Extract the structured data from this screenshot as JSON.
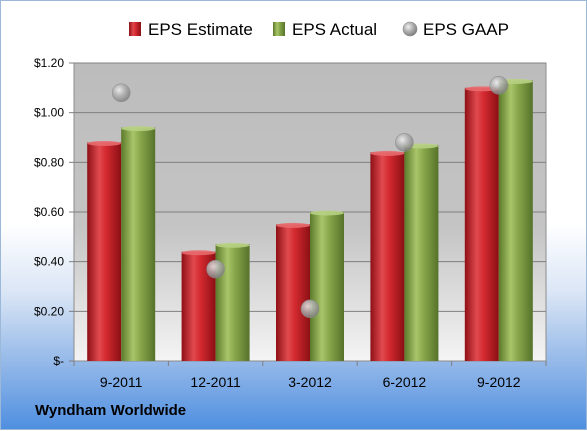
{
  "chart_data": {
    "type": "bar",
    "categories": [
      "9-2011",
      "12-2011",
      "3-2012",
      "6-2012",
      "9-2012"
    ],
    "series": [
      {
        "name": "EPS Estimate",
        "kind": "bar",
        "color": "#c8262c",
        "values": [
          0.88,
          0.44,
          0.55,
          0.84,
          1.1
        ]
      },
      {
        "name": "EPS Actual",
        "kind": "bar",
        "color": "#86a84a",
        "values": [
          0.94,
          0.47,
          0.6,
          0.87,
          1.13
        ]
      },
      {
        "name": "EPS GAAP",
        "kind": "marker",
        "color": "#a6a6a6",
        "values": [
          1.08,
          0.37,
          0.21,
          0.88,
          1.11
        ]
      }
    ],
    "ylim": [
      0,
      1.2
    ],
    "yticks": [
      {
        "value": 0,
        "label": "$-"
      },
      {
        "value": 0.2,
        "label": "$0.20"
      },
      {
        "value": 0.4,
        "label": "$0.40"
      },
      {
        "value": 0.6,
        "label": "$0.60"
      },
      {
        "value": 0.8,
        "label": "$0.80"
      },
      {
        "value": 1.0,
        "label": "$1.00"
      },
      {
        "value": 1.2,
        "label": "$1.20"
      }
    ],
    "grid": true,
    "legend_position": "top"
  },
  "company": "Wyndham Worldwide"
}
